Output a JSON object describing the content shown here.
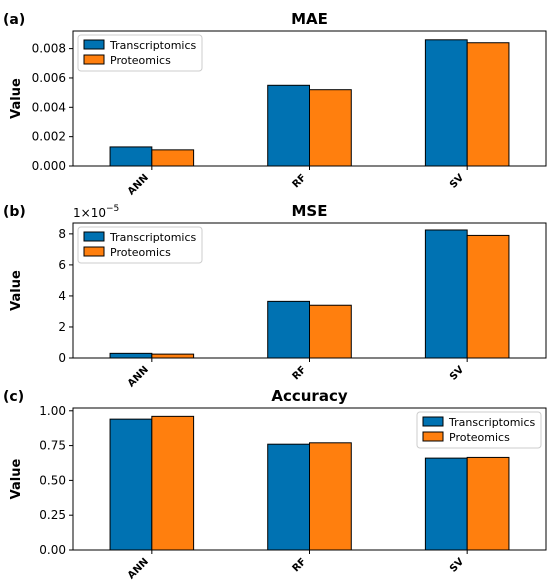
{
  "colors": {
    "transcriptomics": "#0072b2",
    "proteomics": "#ff7f0e",
    "edge": "#000000",
    "axis": "#000000"
  },
  "chart_data": [
    {
      "type": "bar",
      "panel_label": "(a)",
      "title": "MAE",
      "ylabel": "Value",
      "xlabel": "",
      "exponent_label": "",
      "categories": [
        "ANN",
        "RF",
        "SV"
      ],
      "ylim": [
        0,
        0.0092
      ],
      "yticks": [
        0,
        0.002,
        0.004,
        0.006,
        0.008
      ],
      "ytick_labels": [
        "0.000",
        "0.002",
        "0.004",
        "0.006",
        "0.008"
      ],
      "legend_position": "top-left",
      "grid": false,
      "series": [
        {
          "name": "Transcriptomics",
          "values": [
            0.0013,
            0.0055,
            0.0086
          ]
        },
        {
          "name": "Proteomics",
          "values": [
            0.0011,
            0.0052,
            0.0084
          ]
        }
      ]
    },
    {
      "type": "bar",
      "panel_label": "(b)",
      "title": "MSE",
      "ylabel": "Value",
      "xlabel": "",
      "exponent_label": "1e-5",
      "categories": [
        "ANN",
        "RF",
        "SV"
      ],
      "ylim": [
        0,
        8.7
      ],
      "yticks": [
        0,
        2,
        4,
        6,
        8
      ],
      "ytick_labels": [
        "0",
        "2",
        "4",
        "6",
        "8"
      ],
      "legend_position": "top-left",
      "grid": false,
      "series": [
        {
          "name": "Transcriptomics",
          "values": [
            0.3,
            3.65,
            8.25
          ]
        },
        {
          "name": "Proteomics",
          "values": [
            0.25,
            3.4,
            7.9
          ]
        }
      ]
    },
    {
      "type": "bar",
      "panel_label": "(c)",
      "title": "Accuracy",
      "ylabel": "Value",
      "xlabel": "",
      "exponent_label": "",
      "categories": [
        "ANN",
        "RF",
        "SV"
      ],
      "ylim": [
        0,
        1.02
      ],
      "yticks": [
        0,
        0.25,
        0.5,
        0.75,
        1.0
      ],
      "ytick_labels": [
        "0.00",
        "0.25",
        "0.50",
        "0.75",
        "1.00"
      ],
      "legend_position": "top-right",
      "grid": false,
      "series": [
        {
          "name": "Transcriptomics",
          "values": [
            0.94,
            0.76,
            0.66
          ]
        },
        {
          "name": "Proteomics",
          "values": [
            0.96,
            0.77,
            0.665
          ]
        }
      ]
    }
  ]
}
